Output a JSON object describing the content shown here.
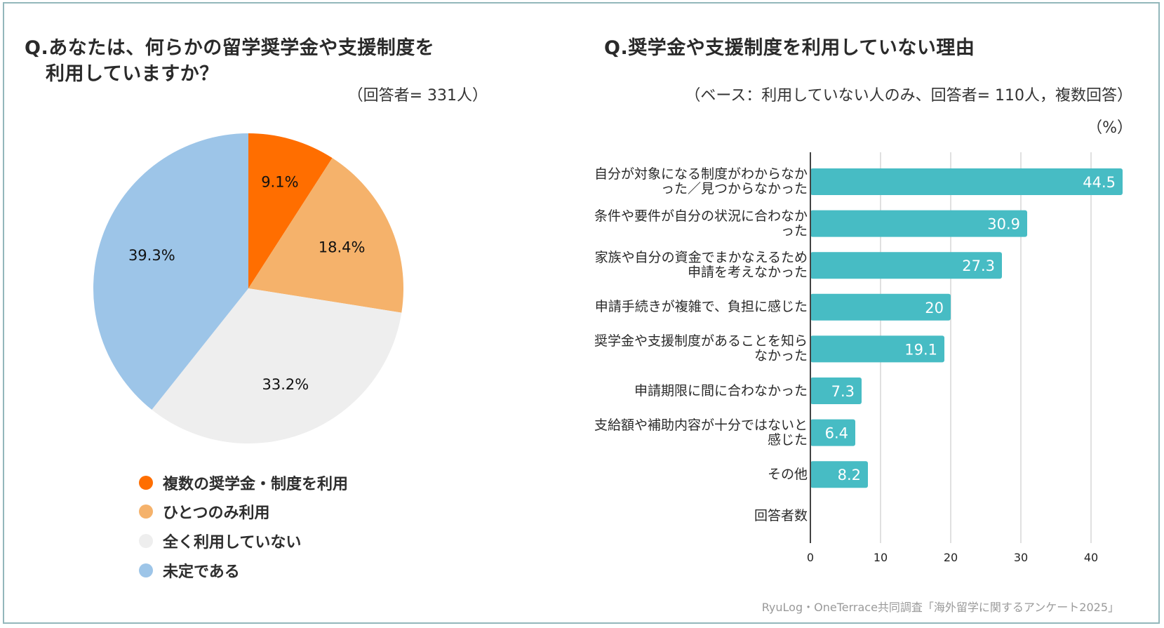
{
  "left_panel": {
    "title_line1": "Q.あなたは、何らかの留学奨学金や支援制度を",
    "title_line2": "利用していますか？",
    "respondents": "（回答者= 331人）"
  },
  "right_panel": {
    "title": "Q.奨学金や支援制度を利用していない理由",
    "subtitle": "（ベース：利用していない人のみ、回答者= 110人，複数回答）",
    "unit": "（%）"
  },
  "footer": "RyuLog・OneTerrace共同調査「海外留学に関するアンケート2025」",
  "colors": {
    "multiple": "#ff6e00",
    "single": "#f5b26b",
    "none": "#eeeeee",
    "undecided": "#9dc5e8",
    "bar": "#47bcc4",
    "frame": "#93b7bb"
  },
  "chart_data": [
    {
      "type": "pie",
      "title": "Q.あなたは、何らかの留学奨学金や支援制度を利用していますか？",
      "labels": [
        "複数の奨学金・制度を利用",
        "ひとつのみ利用",
        "全く利用していない",
        "未定である"
      ],
      "values": [
        9.1,
        18.4,
        33.2,
        39.3
      ],
      "value_labels": [
        "9.1%",
        "18.4%",
        "33.2%",
        "39.3%"
      ],
      "colors": [
        "#ff6e00",
        "#f5b26b",
        "#eeeeee",
        "#9dc5e8"
      ],
      "legend_position": "bottom"
    },
    {
      "type": "bar",
      "orientation": "horizontal",
      "title": "Q.奨学金や支援制度を利用していない理由",
      "categories": [
        [
          "自分が対象になる制度がわからなか",
          "った／見つからなかった"
        ],
        [
          "条件や要件が自分の状況に合わなか",
          "った"
        ],
        [
          "家族や自分の資金でまかなえるため",
          "申請を考えなかった"
        ],
        [
          "申請手続きが複雑で、負担に感じた"
        ],
        [
          "奨学金や支援制度があることを知ら",
          "なかった"
        ],
        [
          "申請期限に間に合わなかった"
        ],
        [
          "支給額や補助内容が十分ではないと",
          "感じた"
        ],
        [
          "その他"
        ],
        [
          "回答者数"
        ]
      ],
      "values": [
        44.5,
        30.9,
        27.3,
        20,
        19.1,
        7.3,
        6.4,
        8.2,
        null
      ],
      "value_labels": [
        "44.5",
        "30.9",
        "27.3",
        "20",
        "19.1",
        "7.3",
        "6.4",
        "8.2",
        ""
      ],
      "xlim": [
        0,
        45
      ],
      "xticks": [
        "0",
        "10",
        "20",
        "30",
        "40"
      ],
      "xtick_values": [
        0,
        10,
        20,
        30,
        40
      ],
      "grid": true,
      "unit": "%"
    }
  ]
}
